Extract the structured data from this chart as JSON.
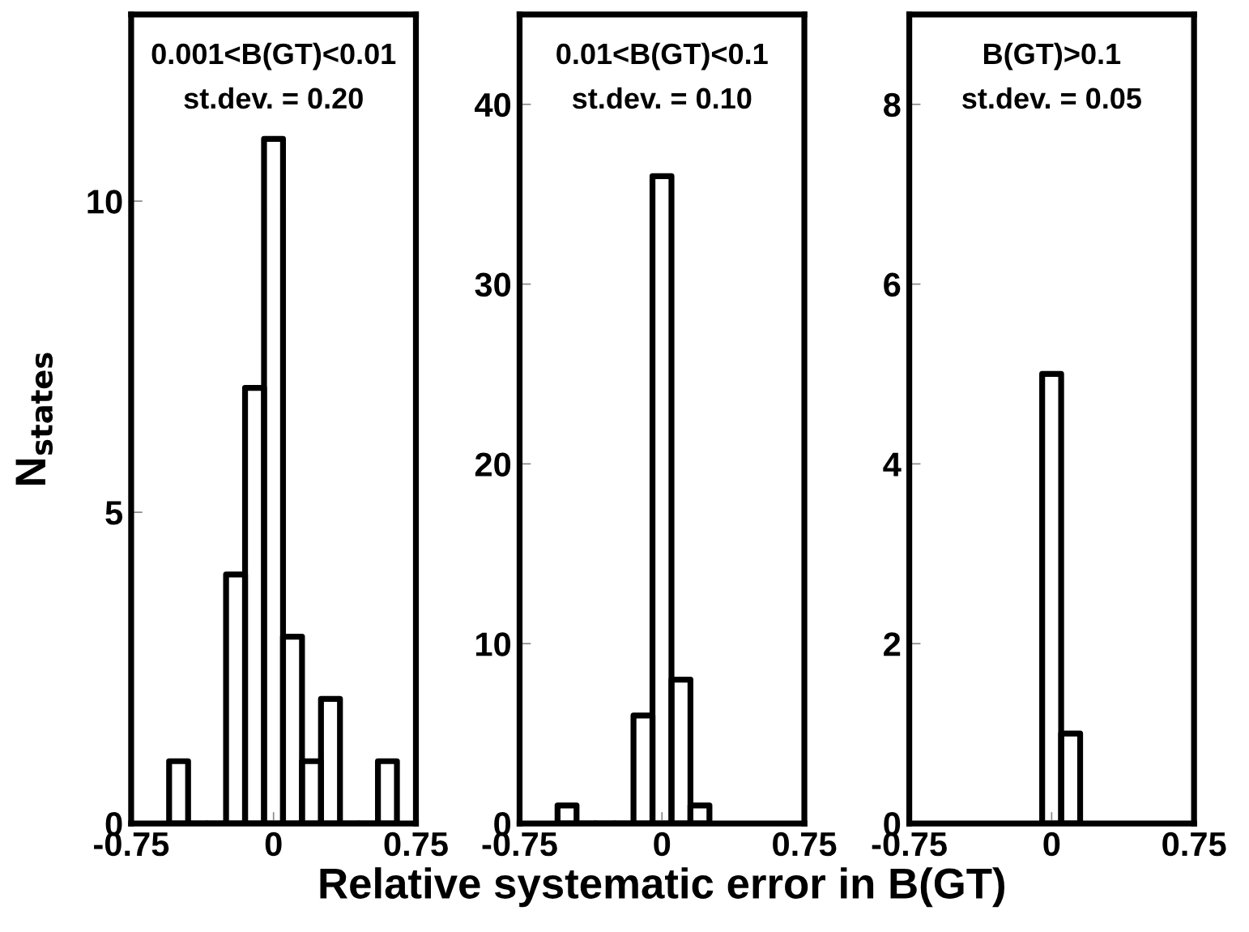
{
  "chart_data": [
    {
      "type": "histogram",
      "title": "0.001<B(GT)<0.01",
      "subtitle": "st.dev. = 0.20",
      "ylabel": "N$_{states}$",
      "bins": [
        -0.55,
        -0.45,
        -0.35,
        -0.25,
        -0.15,
        -0.05,
        0.05,
        0.15,
        0.25,
        0.35,
        0.45,
        0.55,
        0.65
      ],
      "values": [
        1,
        0,
        0,
        4,
        7,
        11,
        3,
        1,
        2,
        0,
        0,
        1
      ],
      "color": "#000000",
      "xlim": [
        -0.75,
        0.75
      ],
      "xticks": [
        -0.75,
        0,
        0.75
      ],
      "ylim": [
        0,
        13
      ],
      "yticks": [
        0,
        5,
        10
      ],
      "grid": false
    },
    {
      "type": "histogram",
      "title": "0.01<B(GT)<0.1",
      "subtitle": "st.dev. = 0.10",
      "xlabel": "Relative systematic error in B(GT)",
      "bins": [
        -0.55,
        -0.45,
        -0.35,
        -0.25,
        -0.15,
        -0.05,
        0.05,
        0.15,
        0.25
      ],
      "values": [
        1,
        0,
        0,
        0,
        6,
        36,
        8,
        1
      ],
      "color": "#000000",
      "xlim": [
        -0.75,
        0.75
      ],
      "xticks": [
        -0.75,
        0,
        0.75
      ],
      "ylim": [
        0,
        45
      ],
      "yticks": [
        0,
        10,
        20,
        30,
        40
      ],
      "grid": false
    },
    {
      "type": "histogram",
      "title": "B(GT)>0.1",
      "subtitle": "st.dev. = 0.05",
      "bins": [
        -0.05,
        0.05,
        0.15
      ],
      "values": [
        5,
        1
      ],
      "color": "#000000",
      "xlim": [
        -0.75,
        0.75
      ],
      "xticks": [
        -0.75,
        0,
        0.75
      ],
      "ylim": [
        0,
        9
      ],
      "yticks": [
        0,
        2,
        4,
        6,
        8
      ],
      "grid": false
    }
  ]
}
